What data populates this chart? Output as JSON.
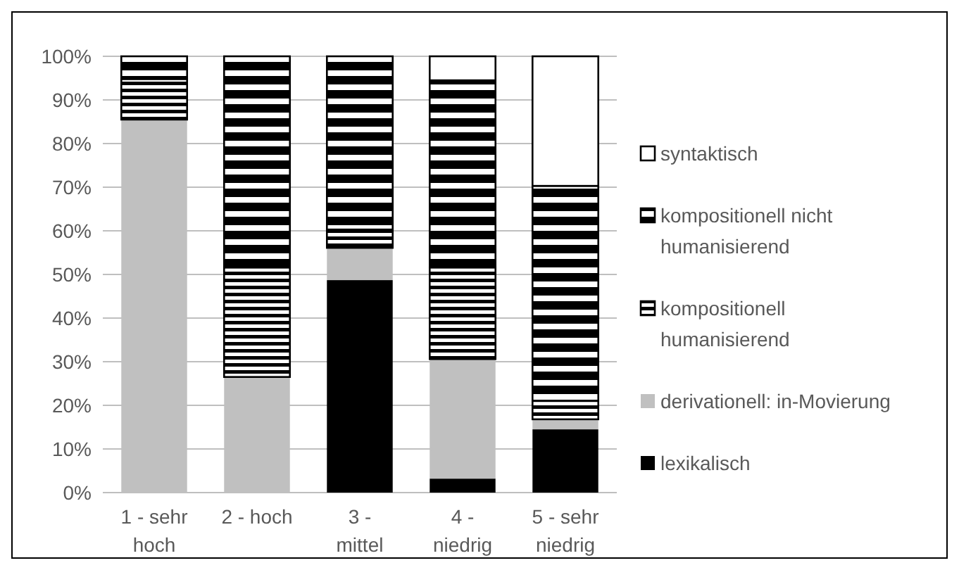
{
  "chart_data": {
    "type": "bar",
    "stacked": true,
    "categories": [
      "1 - sehr hoch",
      "2 - hoch",
      "3 - mittel",
      "4 - niedrig",
      "5 - sehr niedrig"
    ],
    "series": [
      {
        "name": "lexikalisch",
        "color": "#000000",
        "values": [
          0,
          0,
          48.7,
          3.2,
          14.5
        ]
      },
      {
        "name": "derivationell: in-Movierung",
        "color": "#c0c0c0",
        "values": [
          85.5,
          26.5,
          7.4,
          27.4,
          2.3
        ]
      },
      {
        "name": "kompositionell humanisierend",
        "color": "#000000",
        "values": [
          9.3,
          25.1,
          4.2,
          21,
          4.2
        ]
      },
      {
        "name": "kompositionell nicht humanisierend",
        "color": "#000000",
        "values": [
          5.2,
          48.4,
          39.7,
          42.9,
          49.3
        ]
      },
      {
        "name": "syntaktisch",
        "color": "#ffffff",
        "values": [
          0,
          0,
          0,
          5.5,
          29.7
        ]
      }
    ],
    "ylim": [
      0,
      100
    ],
    "yticks": [
      {
        "value": 0,
        "label": "0%"
      },
      {
        "value": 10,
        "label": "10%"
      },
      {
        "value": 20,
        "label": "20%"
      },
      {
        "value": 30,
        "label": "30%"
      },
      {
        "value": 40,
        "label": "40%"
      },
      {
        "value": 50,
        "label": "50%"
      },
      {
        "value": 60,
        "label": "60%"
      },
      {
        "value": 70,
        "label": "70%"
      },
      {
        "value": 80,
        "label": "80%"
      },
      {
        "value": 90,
        "label": "90%"
      },
      {
        "value": 100,
        "label": "100%"
      }
    ],
    "grid": "y",
    "legend": "right"
  }
}
